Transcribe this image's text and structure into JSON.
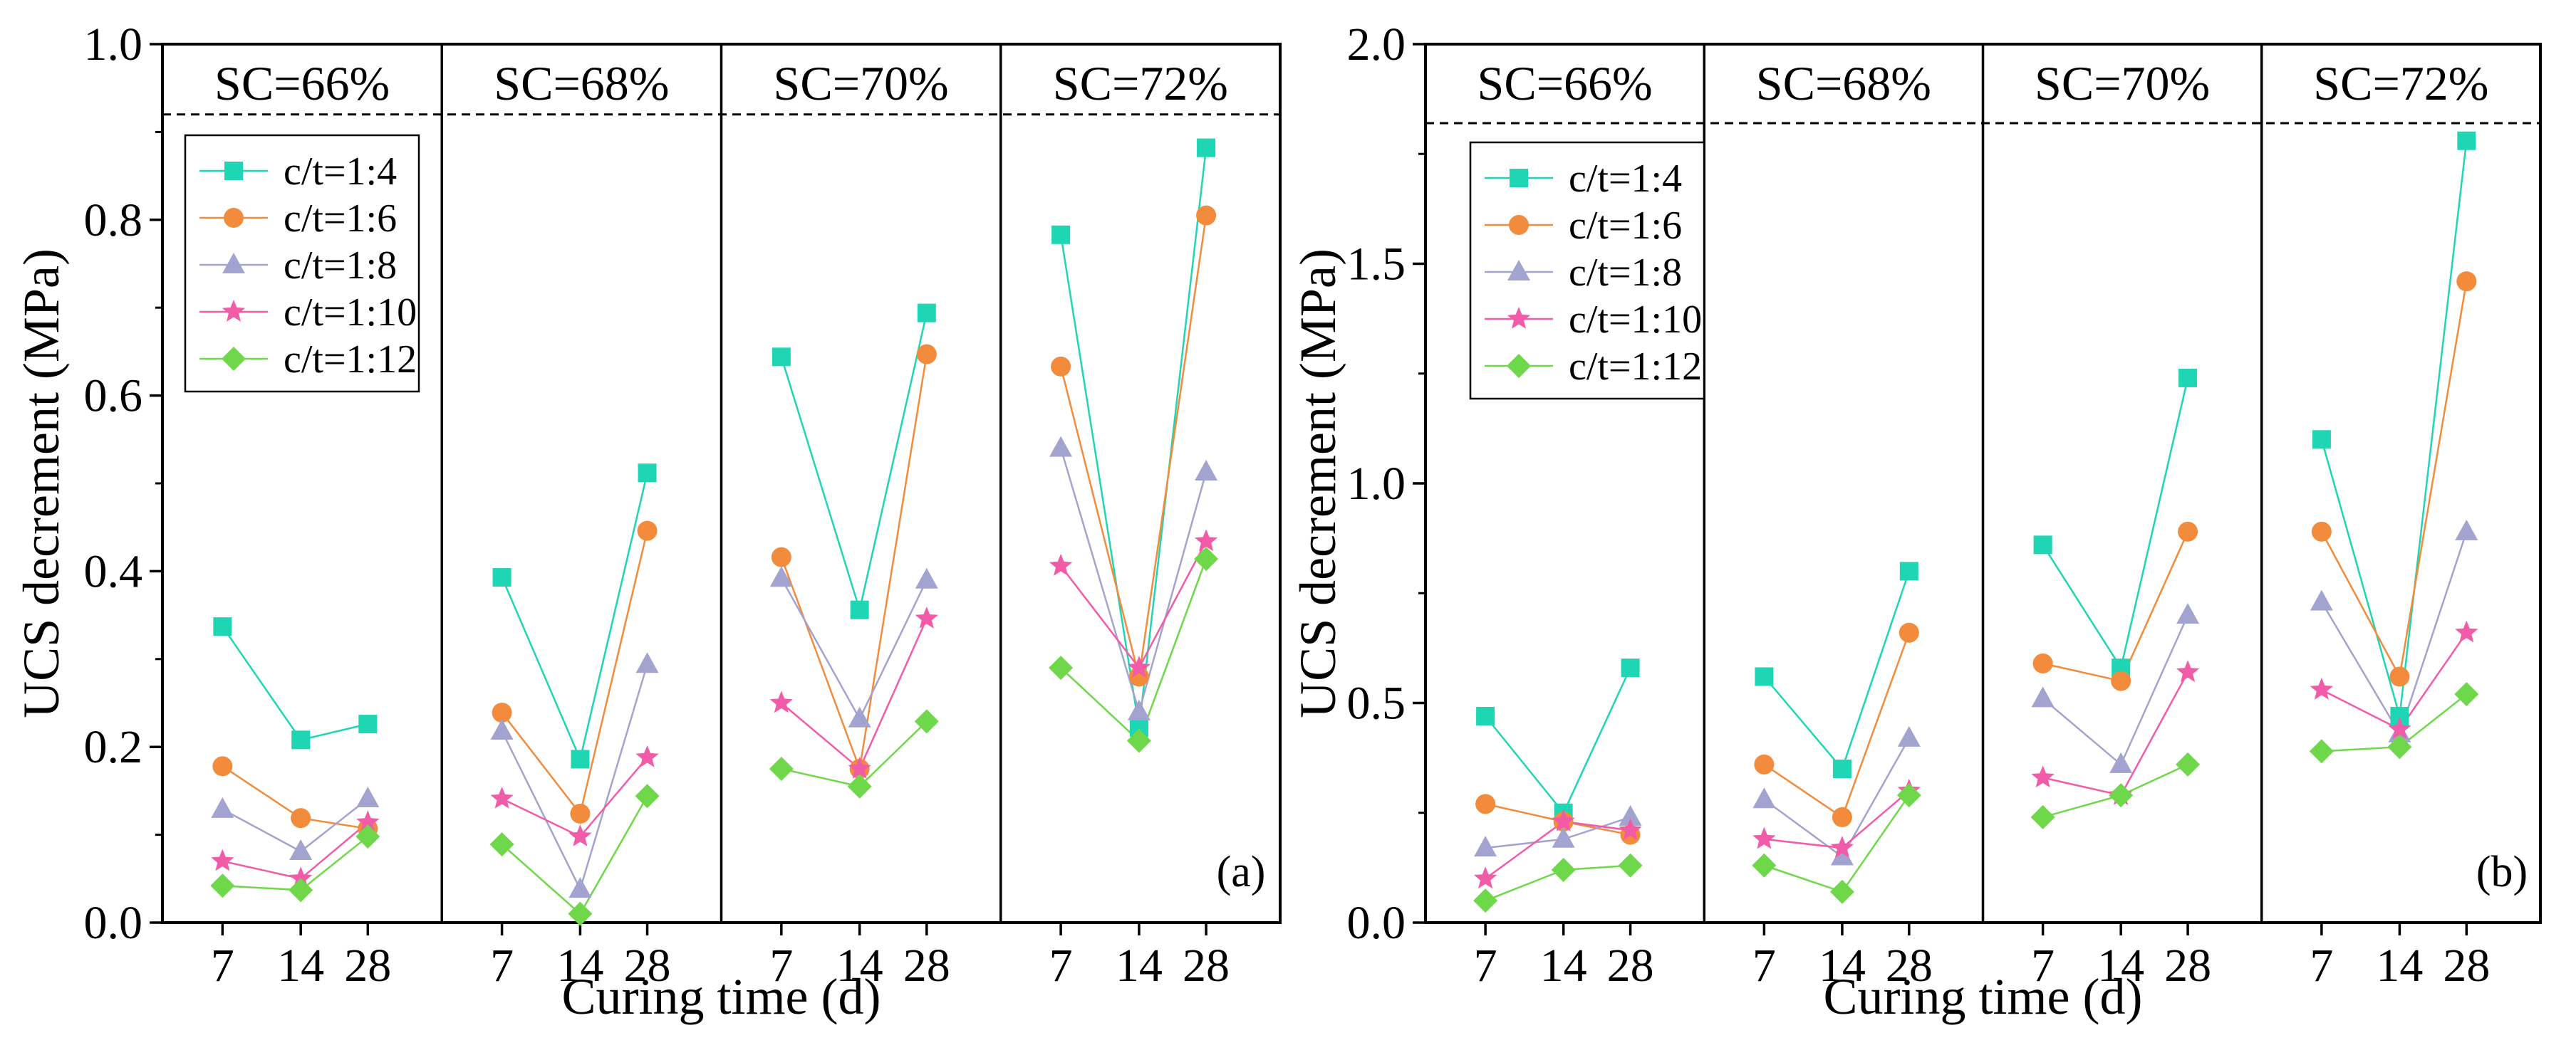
{
  "chart_data": [
    {
      "type": "line",
      "ylabel": "UCS decrement (MPa)",
      "xlabel": "Curing time (d)",
      "tag": "(a)",
      "ylim": [
        0,
        1.0
      ],
      "yticks": [
        0.0,
        0.2,
        0.4,
        0.6,
        0.8,
        1.0
      ],
      "ytick_labels": [
        "0.0",
        "0.2",
        "0.4",
        "0.6",
        "0.8",
        "1.0"
      ],
      "reference_line": 0.92,
      "panels": [
        {
          "label": "SC=66%",
          "x": [
            7,
            14,
            28
          ],
          "series": [
            {
              "name": "c/t=1:4",
              "values": [
                0.337,
                0.208,
                0.226
              ]
            },
            {
              "name": "c/t=1:6",
              "values": [
                0.178,
                0.119,
                0.107
              ]
            },
            {
              "name": "c/t=1:8",
              "values": [
                0.129,
                0.081,
                0.141
              ]
            },
            {
              "name": "c/t=1:10",
              "values": [
                0.07,
                0.05,
                0.114
              ]
            },
            {
              "name": "c/t=1:12",
              "values": [
                0.042,
                0.037,
                0.098
              ]
            }
          ]
        },
        {
          "label": "SC=68%",
          "x": [
            7,
            14,
            28
          ],
          "series": [
            {
              "name": "c/t=1:4",
              "values": [
                0.393,
                0.186,
                0.512
              ]
            },
            {
              "name": "c/t=1:6",
              "values": [
                0.239,
                0.124,
                0.446
              ]
            },
            {
              "name": "c/t=1:8",
              "values": [
                0.218,
                0.038,
                0.294
              ]
            },
            {
              "name": "c/t=1:10",
              "values": [
                0.141,
                0.098,
                0.188
              ]
            },
            {
              "name": "c/t=1:12",
              "values": [
                0.089,
                0.01,
                0.144
              ]
            }
          ]
        },
        {
          "label": "SC=70%",
          "x": [
            7,
            14,
            28
          ],
          "series": [
            {
              "name": "c/t=1:4",
              "values": [
                0.644,
                0.356,
                0.694
              ]
            },
            {
              "name": "c/t=1:6",
              "values": [
                0.416,
                0.175,
                0.647
              ]
            },
            {
              "name": "c/t=1:8",
              "values": [
                0.392,
                0.232,
                0.39
              ]
            },
            {
              "name": "c/t=1:10",
              "values": [
                0.25,
                0.175,
                0.346
              ]
            },
            {
              "name": "c/t=1:12",
              "values": [
                0.175,
                0.155,
                0.229
              ]
            }
          ]
        },
        {
          "label": "SC=72%",
          "x": [
            7,
            14,
            28
          ],
          "series": [
            {
              "name": "c/t=1:4",
              "values": [
                0.783,
                0.222,
                0.882
              ]
            },
            {
              "name": "c/t=1:6",
              "values": [
                0.633,
                0.28,
                0.805
              ]
            },
            {
              "name": "c/t=1:8",
              "values": [
                0.54,
                0.24,
                0.513
              ]
            },
            {
              "name": "c/t=1:10",
              "values": [
                0.406,
                0.29,
                0.434
              ]
            },
            {
              "name": "c/t=1:12",
              "values": [
                0.29,
                0.207,
                0.414
              ]
            }
          ]
        }
      ]
    },
    {
      "type": "line",
      "ylabel": "UCS decrement (MPa)",
      "xlabel": "Curing time (d)",
      "tag": "(b)",
      "ylim": [
        0,
        2.0
      ],
      "yticks": [
        0.0,
        0.5,
        1.0,
        1.5,
        2.0
      ],
      "ytick_labels": [
        "0.0",
        "0.5",
        "1.0",
        "1.5",
        "2.0"
      ],
      "reference_line": 1.82,
      "panels": [
        {
          "label": "SC=66%",
          "x": [
            7,
            14,
            28
          ],
          "series": [
            {
              "name": "c/t=1:4",
              "values": [
                0.47,
                0.25,
                0.58
              ]
            },
            {
              "name": "c/t=1:6",
              "values": [
                0.27,
                0.23,
                0.2
              ]
            },
            {
              "name": "c/t=1:8",
              "values": [
                0.17,
                0.19,
                0.24
              ]
            },
            {
              "name": "c/t=1:10",
              "values": [
                0.1,
                0.23,
                0.21
              ]
            },
            {
              "name": "c/t=1:12",
              "values": [
                0.05,
                0.12,
                0.13
              ]
            }
          ]
        },
        {
          "label": "SC=68%",
          "x": [
            7,
            14,
            28
          ],
          "series": [
            {
              "name": "c/t=1:4",
              "values": [
                0.56,
                0.35,
                0.8
              ]
            },
            {
              "name": "c/t=1:6",
              "values": [
                0.36,
                0.24,
                0.66
              ]
            },
            {
              "name": "c/t=1:8",
              "values": [
                0.28,
                0.15,
                0.42
              ]
            },
            {
              "name": "c/t=1:10",
              "values": [
                0.19,
                0.17,
                0.3
              ]
            },
            {
              "name": "c/t=1:12",
              "values": [
                0.13,
                0.07,
                0.29
              ]
            }
          ]
        },
        {
          "label": "SC=70%",
          "x": [
            7,
            14,
            28
          ],
          "series": [
            {
              "name": "c/t=1:4",
              "values": [
                0.86,
                0.58,
                1.24
              ]
            },
            {
              "name": "c/t=1:6",
              "values": [
                0.59,
                0.55,
                0.89
              ]
            },
            {
              "name": "c/t=1:8",
              "values": [
                0.51,
                0.36,
                0.7
              ]
            },
            {
              "name": "c/t=1:10",
              "values": [
                0.33,
                0.29,
                0.57
              ]
            },
            {
              "name": "c/t=1:12",
              "values": [
                0.24,
                0.29,
                0.36
              ]
            }
          ]
        },
        {
          "label": "SC=72%",
          "x": [
            7,
            14,
            28
          ],
          "series": [
            {
              "name": "c/t=1:4",
              "values": [
                1.1,
                0.47,
                1.78
              ]
            },
            {
              "name": "c/t=1:6",
              "values": [
                0.89,
                0.56,
                1.46
              ]
            },
            {
              "name": "c/t=1:8",
              "values": [
                0.73,
                0.43,
                0.89
              ]
            },
            {
              "name": "c/t=1:10",
              "values": [
                0.53,
                0.44,
                0.66
              ]
            },
            {
              "name": "c/t=1:12",
              "values": [
                0.39,
                0.4,
                0.52
              ]
            }
          ]
        }
      ]
    }
  ],
  "legend": [
    {
      "name": "c/t=1:4",
      "color": "#1fd6b4",
      "marker": "square"
    },
    {
      "name": "c/t=1:6",
      "color": "#f28b3c",
      "marker": "circle"
    },
    {
      "name": "c/t=1:8",
      "color": "#a3a3cf",
      "marker": "triangle"
    },
    {
      "name": "c/t=1:10",
      "color": "#f25ba8",
      "marker": "star"
    },
    {
      "name": "c/t=1:12",
      "color": "#6fd84a",
      "marker": "diamond"
    }
  ],
  "x_tick_labels": [
    "7",
    "14",
    "28"
  ]
}
